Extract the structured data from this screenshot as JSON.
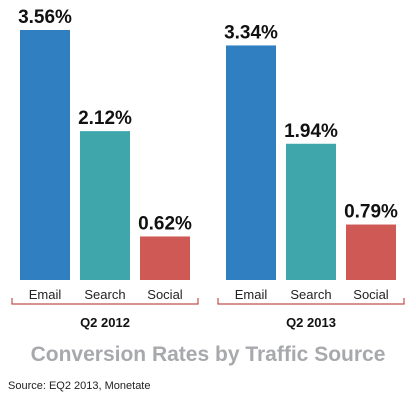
{
  "chart_data": {
    "type": "bar",
    "title": "Conversion Rates by Traffic Source",
    "source": "Source: EQ2 2013, Monetate",
    "ylim": [
      0,
      3.56
    ],
    "value_suffix": "%",
    "groups": [
      {
        "name": "Q2 2012",
        "categories": [
          "Email",
          "Search",
          "Social"
        ],
        "values": [
          3.56,
          2.12,
          0.62
        ]
      },
      {
        "name": "Q2 2013",
        "categories": [
          "Email",
          "Search",
          "Social"
        ],
        "values": [
          3.34,
          1.94,
          0.79
        ]
      }
    ],
    "colors": {
      "Email": "#2f7fc1",
      "Search": "#3fa6ac",
      "Social": "#cf5a55"
    },
    "axis_color": "#c0504d",
    "grid": false,
    "legend": "none"
  }
}
